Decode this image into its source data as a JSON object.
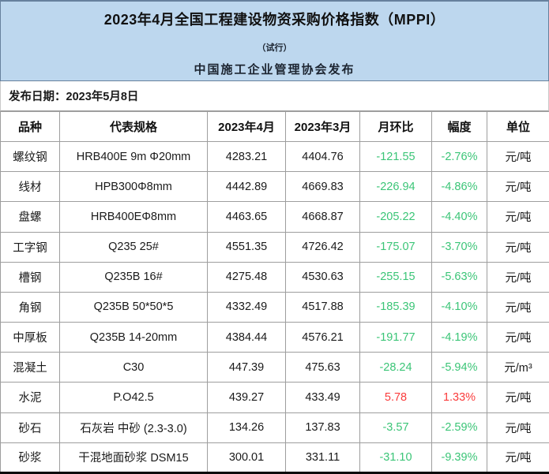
{
  "banner": {
    "title": "2023年4月全国工程建设物资采购价格指数（MPPI）",
    "subtitle": "（试行）",
    "publisher": "中国施工企业管理协会发布"
  },
  "publish_date": {
    "label": "发布日期：",
    "value": "2023年5月8日"
  },
  "colors": {
    "banner_bg": "#bdd7ee",
    "frame_dark": "#67819d",
    "grid_gray": "#9e9e9e",
    "down_green": "#3bc577",
    "up_red": "#fa3c3c"
  },
  "table": {
    "headers": [
      "品种",
      "代表规格",
      "2023年4月",
      "2023年3月",
      "月环比",
      "幅度",
      "单位"
    ],
    "rows": [
      {
        "name": "螺纹钢",
        "spec": "HRB400E 9m Φ20mm",
        "apr": "4283.21",
        "mar": "4404.76",
        "mom": "-121.55",
        "pct": "-2.76%",
        "unit": "元/吨",
        "trend": "down"
      },
      {
        "name": "线材",
        "spec": "HPB300Φ8mm",
        "apr": "4442.89",
        "mar": "4669.83",
        "mom": "-226.94",
        "pct": "-4.86%",
        "unit": "元/吨",
        "trend": "down"
      },
      {
        "name": "盘螺",
        "spec": "HRB400EΦ8mm",
        "apr": "4463.65",
        "mar": "4668.87",
        "mom": "-205.22",
        "pct": "-4.40%",
        "unit": "元/吨",
        "trend": "down"
      },
      {
        "name": "工字钢",
        "spec": "Q235 25#",
        "apr": "4551.35",
        "mar": "4726.42",
        "mom": "-175.07",
        "pct": "-3.70%",
        "unit": "元/吨",
        "trend": "down"
      },
      {
        "name": "槽钢",
        "spec": "Q235B 16#",
        "apr": "4275.48",
        "mar": "4530.63",
        "mom": "-255.15",
        "pct": "-5.63%",
        "unit": "元/吨",
        "trend": "down"
      },
      {
        "name": "角钢",
        "spec": "Q235B 50*50*5",
        "apr": "4332.49",
        "mar": "4517.88",
        "mom": "-185.39",
        "pct": "-4.10%",
        "unit": "元/吨",
        "trend": "down"
      },
      {
        "name": "中厚板",
        "spec": "Q235B 14-20mm",
        "apr": "4384.44",
        "mar": "4576.21",
        "mom": "-191.77",
        "pct": "-4.19%",
        "unit": "元/吨",
        "trend": "down"
      },
      {
        "name": "混凝土",
        "spec": "C30",
        "apr": "447.39",
        "mar": "475.63",
        "mom": "-28.24",
        "pct": "-5.94%",
        "unit": "元/m³",
        "trend": "down"
      },
      {
        "name": "水泥",
        "spec": "P.O42.5",
        "apr": "439.27",
        "mar": "433.49",
        "mom": "5.78",
        "pct": "1.33%",
        "unit": "元/吨",
        "trend": "up"
      },
      {
        "name": "砂石",
        "spec": "石灰岩 中砂 (2.3-3.0)",
        "apr": "134.26",
        "mar": "137.83",
        "mom": "-3.57",
        "pct": "-2.59%",
        "unit": "元/吨",
        "trend": "down"
      },
      {
        "name": "砂浆",
        "spec": "干混地面砂浆 DSM15",
        "apr": "300.01",
        "mar": "331.11",
        "mom": "-31.10",
        "pct": "-9.39%",
        "unit": "元/吨",
        "trend": "down"
      }
    ]
  }
}
